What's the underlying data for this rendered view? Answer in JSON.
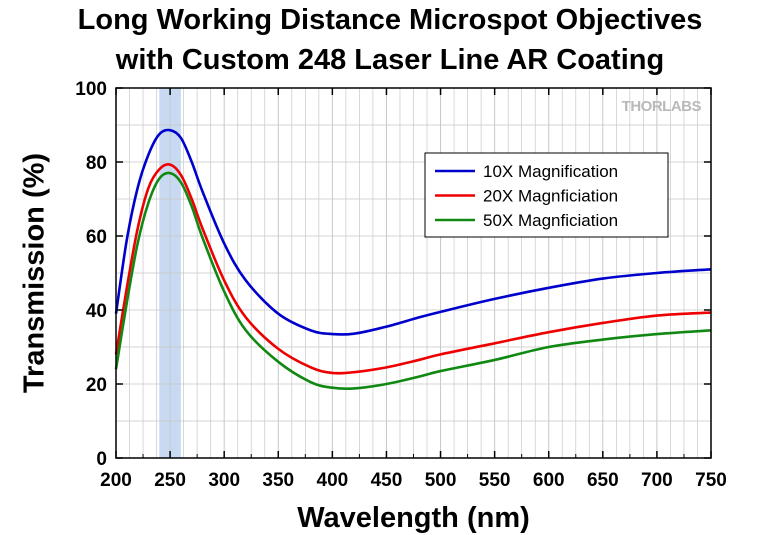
{
  "chart_data": {
    "type": "line",
    "title": "Long Working Distance Microspot Objectives",
    "subtitle": "with Custom 248 Laser Line AR Coating",
    "xlabel": "Wavelength (nm)",
    "ylabel": "Transmission (%)",
    "xlim": [
      200,
      750
    ],
    "ylim": [
      0,
      100
    ],
    "xticks": [
      200,
      250,
      300,
      350,
      400,
      450,
      500,
      550,
      600,
      650,
      700,
      750
    ],
    "yticks": [
      0,
      20,
      40,
      60,
      80,
      100
    ],
    "grid": true,
    "highlight_band": [
      240,
      260
    ],
    "highlight_color": "#c8d9f2",
    "logo": "THORLABS",
    "legend_position": "upper-right",
    "series": [
      {
        "name": "10X Magnification",
        "color": "#0000cc",
        "x": [
          200,
          210,
          220,
          230,
          240,
          250,
          260,
          270,
          280,
          300,
          320,
          350,
          380,
          400,
          420,
          450,
          480,
          500,
          550,
          600,
          650,
          700,
          750
        ],
        "y": [
          39,
          59,
          73,
          82,
          87.5,
          88.6,
          86.5,
          80,
          72,
          58,
          48,
          39,
          34.5,
          33.5,
          33.6,
          35.5,
          38,
          39.5,
          43,
          46,
          48.5,
          50,
          51
        ]
      },
      {
        "name": "20X Magnficiation",
        "color": "#ee0000",
        "x": [
          200,
          210,
          220,
          230,
          240,
          250,
          260,
          270,
          280,
          300,
          320,
          350,
          380,
          400,
          420,
          450,
          480,
          500,
          550,
          600,
          650,
          700,
          750
        ],
        "y": [
          28,
          46,
          62,
          73,
          78,
          79.3,
          76.5,
          70,
          62,
          48,
          38,
          29.5,
          24.5,
          23,
          23.2,
          24.5,
          26.5,
          28,
          31,
          34,
          36.5,
          38.5,
          39.3
        ]
      },
      {
        "name": "50X Magnficiation",
        "color": "#118811",
        "x": [
          200,
          210,
          220,
          230,
          240,
          250,
          260,
          270,
          280,
          300,
          320,
          350,
          380,
          400,
          420,
          450,
          480,
          500,
          550,
          600,
          650,
          700,
          750
        ],
        "y": [
          24,
          42,
          58,
          69,
          75.5,
          77,
          74.5,
          68,
          59.5,
          45,
          34.5,
          26,
          20.5,
          19,
          18.8,
          20,
          22,
          23.5,
          26.5,
          30,
          32,
          33.5,
          34.5
        ]
      }
    ]
  }
}
